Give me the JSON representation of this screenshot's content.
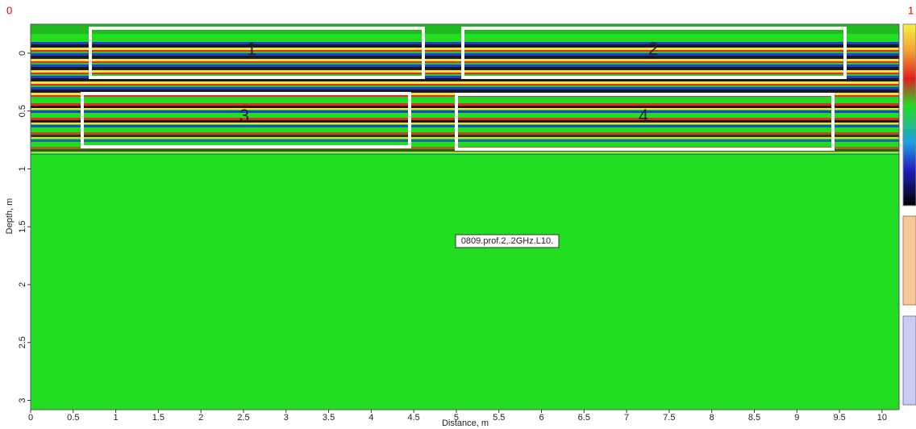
{
  "radargram": {
    "corner_left": "0",
    "corner_right": "1",
    "xlabel": "Distance, m",
    "ylabel": "Depth, m",
    "xlim": [
      0,
      10.2
    ],
    "ylim": [
      -0.25,
      3.08
    ],
    "xticks": [
      0,
      0.5,
      1,
      1.5,
      2,
      2.5,
      3,
      3.5,
      4,
      4.5,
      5,
      5.5,
      6,
      6.5,
      7,
      7.5,
      8,
      8.5,
      9,
      9.5,
      10
    ],
    "yticks": [
      0,
      0.5,
      1,
      1.5,
      2,
      2.5,
      3
    ],
    "boxes": [
      {
        "label": "1"
      },
      {
        "label": "2"
      },
      {
        "label": "3"
      },
      {
        "label": "4"
      }
    ],
    "profile_label": "0809.prof.2,.2GHz.L10."
  }
}
